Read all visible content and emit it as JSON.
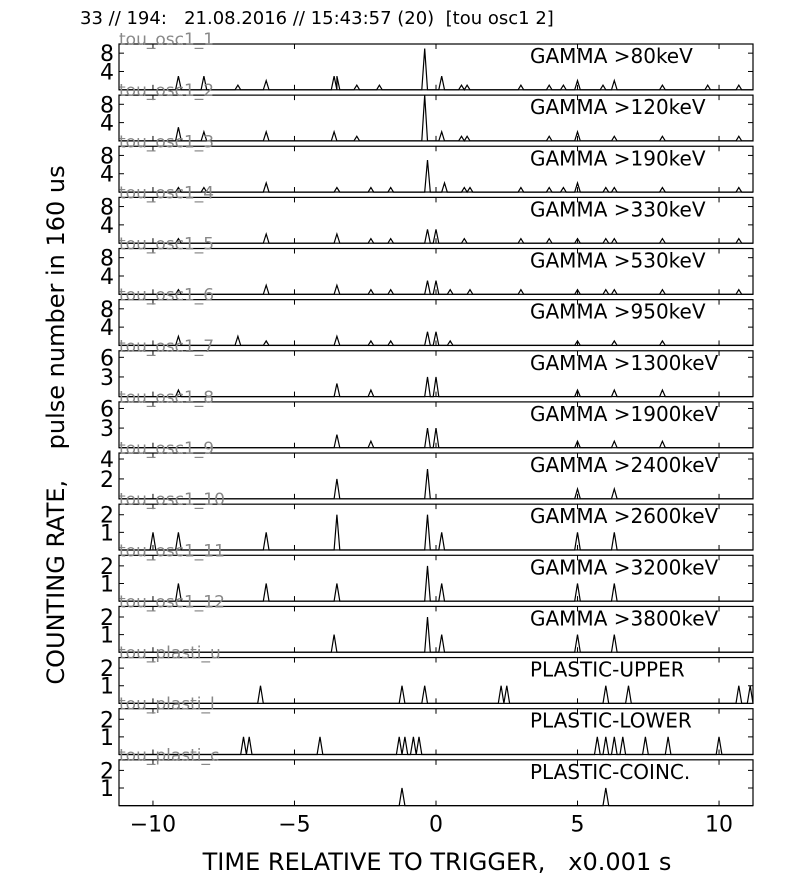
{
  "header": "33 // 194:   21.08.2016 // 15:43:57 (20)  [tou osc1 2]",
  "chart_data": {
    "type": "line",
    "xlabel": "TIME RELATIVE TO TRIGGER,   x0.001 s",
    "ylabel": "COUNTING RATE,    pulse number in 160 us",
    "xlim": [
      -11.2,
      11.2
    ],
    "x_ticks": [
      -10,
      -5,
      0,
      5,
      10
    ],
    "x_tick_labels": [
      "−10",
      "−5",
      "0",
      "5",
      "10"
    ],
    "panels": [
      {
        "channel": "tou_osc1_1",
        "label": "GAMMA >80keV",
        "ylim": [
          0,
          10
        ],
        "yticks": [
          4,
          8
        ],
        "spikes": [
          [
            -9.1,
            3
          ],
          [
            -8.2,
            3
          ],
          [
            -7,
            1
          ],
          [
            -6,
            2
          ],
          [
            -3.6,
            3
          ],
          [
            -3.5,
            3
          ],
          [
            -2.8,
            1
          ],
          [
            -2,
            1
          ],
          [
            -0.4,
            9
          ],
          [
            0.2,
            3
          ],
          [
            0.9,
            1
          ],
          [
            1.1,
            1
          ],
          [
            3,
            1
          ],
          [
            4,
            1
          ],
          [
            4.5,
            1
          ],
          [
            5,
            2
          ],
          [
            5.9,
            1
          ],
          [
            6.3,
            2
          ],
          [
            8,
            1
          ],
          [
            9.6,
            1
          ],
          [
            10.7,
            1
          ]
        ]
      },
      {
        "channel": "tou_osc1_2",
        "label": "GAMMA >120keV",
        "ylim": [
          0,
          10
        ],
        "yticks": [
          4,
          8
        ],
        "spikes": [
          [
            -9.1,
            3
          ],
          [
            -8.2,
            2
          ],
          [
            -6,
            2
          ],
          [
            -3.6,
            2
          ],
          [
            -2.8,
            1
          ],
          [
            -0.4,
            10
          ],
          [
            0.2,
            2
          ],
          [
            0.9,
            1
          ],
          [
            1.1,
            1
          ],
          [
            4,
            1
          ],
          [
            5,
            2
          ],
          [
            6.3,
            1
          ],
          [
            8,
            1
          ],
          [
            10.7,
            1
          ]
        ]
      },
      {
        "channel": "tou_osc1_3",
        "label": "GAMMA >190keV",
        "ylim": [
          0,
          10
        ],
        "yticks": [
          4,
          8
        ],
        "spikes": [
          [
            -9.1,
            1
          ],
          [
            -8.2,
            1
          ],
          [
            -6,
            2
          ],
          [
            -3.5,
            1
          ],
          [
            -2.3,
            1
          ],
          [
            -1.6,
            1
          ],
          [
            -0.3,
            7
          ],
          [
            0.3,
            2
          ],
          [
            1,
            1
          ],
          [
            1.2,
            1
          ],
          [
            3,
            1
          ],
          [
            4,
            1
          ],
          [
            4.5,
            1
          ],
          [
            5,
            2
          ],
          [
            6,
            1
          ],
          [
            6.3,
            1
          ],
          [
            8,
            1
          ],
          [
            10.7,
            1
          ]
        ]
      },
      {
        "channel": "tou_osc1_4",
        "label": "GAMMA >330keV",
        "ylim": [
          0,
          10
        ],
        "yticks": [
          4,
          8
        ],
        "spikes": [
          [
            -9.1,
            1
          ],
          [
            -6,
            2
          ],
          [
            -3.5,
            2
          ],
          [
            -2.3,
            1
          ],
          [
            -1.6,
            1
          ],
          [
            -0.3,
            3
          ],
          [
            0,
            3
          ],
          [
            1,
            1
          ],
          [
            3,
            1
          ],
          [
            4,
            1
          ],
          [
            5,
            1
          ],
          [
            6,
            1
          ],
          [
            6.3,
            1
          ],
          [
            8,
            1
          ],
          [
            10.7,
            1
          ]
        ]
      },
      {
        "channel": "tou_osc1_5",
        "label": "GAMMA >530keV",
        "ylim": [
          0,
          10
        ],
        "yticks": [
          4,
          8
        ],
        "spikes": [
          [
            -9.1,
            1
          ],
          [
            -6,
            2
          ],
          [
            -3.5,
            2
          ],
          [
            -2.3,
            1
          ],
          [
            -1.6,
            1
          ],
          [
            -0.3,
            3
          ],
          [
            0,
            3
          ],
          [
            0.5,
            1
          ],
          [
            1.2,
            1
          ],
          [
            3,
            1
          ],
          [
            5,
            1
          ],
          [
            6,
            1
          ],
          [
            6.3,
            1
          ],
          [
            8,
            1
          ],
          [
            10.7,
            1
          ]
        ]
      },
      {
        "channel": "tou_osc1_6",
        "label": "GAMMA >950keV",
        "ylim": [
          0,
          10
        ],
        "yticks": [
          4,
          8
        ],
        "spikes": [
          [
            -9.1,
            2
          ],
          [
            -7,
            2
          ],
          [
            -6,
            1
          ],
          [
            -3.5,
            2
          ],
          [
            -2.3,
            1
          ],
          [
            -1.6,
            1
          ],
          [
            -0.3,
            3
          ],
          [
            0,
            3
          ],
          [
            0.5,
            1
          ],
          [
            5,
            1
          ],
          [
            6.3,
            1
          ],
          [
            8,
            1
          ]
        ]
      },
      {
        "channel": "tou_osc1_7",
        "label": "GAMMA >1300keV",
        "ylim": [
          0,
          7
        ],
        "yticks": [
          3,
          6
        ],
        "spikes": [
          [
            -9.1,
            1
          ],
          [
            -3.5,
            2
          ],
          [
            -2.3,
            1
          ],
          [
            -0.3,
            3
          ],
          [
            0,
            3
          ],
          [
            5,
            1
          ],
          [
            6.3,
            1
          ],
          [
            8,
            1
          ]
        ]
      },
      {
        "channel": "tou_osc1_8",
        "label": "GAMMA >1900keV",
        "ylim": [
          0,
          7
        ],
        "yticks": [
          3,
          6
        ],
        "spikes": [
          [
            -3.5,
            2
          ],
          [
            -2.3,
            1
          ],
          [
            -0.3,
            3
          ],
          [
            0,
            3
          ],
          [
            5,
            1
          ],
          [
            6.3,
            1
          ],
          [
            8,
            1
          ]
        ]
      },
      {
        "channel": "tou_osc1_9",
        "label": "GAMMA >2400keV",
        "ylim": [
          0,
          4.6
        ],
        "yticks": [
          2,
          4
        ],
        "spikes": [
          [
            -3.5,
            2
          ],
          [
            -0.3,
            3
          ],
          [
            5,
            1
          ],
          [
            6.3,
            1
          ]
        ]
      },
      {
        "channel": "tou_osc1_10",
        "label": "GAMMA >2600keV",
        "ylim": [
          0,
          2.6
        ],
        "yticks": [
          1,
          2
        ],
        "spikes": [
          [
            -10,
            1
          ],
          [
            -9.1,
            1
          ],
          [
            -6,
            1
          ],
          [
            -3.5,
            2
          ],
          [
            -0.3,
            2
          ],
          [
            0.2,
            1
          ],
          [
            5,
            1
          ],
          [
            6.3,
            1
          ]
        ]
      },
      {
        "channel": "tou_osc1_11",
        "label": "GAMMA >3200keV",
        "ylim": [
          0,
          2.6
        ],
        "yticks": [
          1,
          2
        ],
        "spikes": [
          [
            -9.1,
            1
          ],
          [
            -6,
            1
          ],
          [
            -3.5,
            1
          ],
          [
            -0.3,
            2
          ],
          [
            0.2,
            1
          ],
          [
            5,
            1
          ],
          [
            6.3,
            1
          ]
        ]
      },
      {
        "channel": "tou_osc1_12",
        "label": "GAMMA >3800keV",
        "ylim": [
          0,
          2.6
        ],
        "yticks": [
          1,
          2
        ],
        "spikes": [
          [
            -3.6,
            1
          ],
          [
            -0.3,
            2
          ],
          [
            0.2,
            1
          ],
          [
            5,
            1
          ],
          [
            6.3,
            1
          ]
        ]
      },
      {
        "channel": "tou_plasti_u",
        "label": "PLASTIC-UPPER",
        "ylim": [
          0,
          2.6
        ],
        "yticks": [
          1,
          2
        ],
        "spikes": [
          [
            -6.2,
            1
          ],
          [
            -1.2,
            1
          ],
          [
            -0.4,
            1
          ],
          [
            2.3,
            1
          ],
          [
            2.5,
            1
          ],
          [
            6,
            1
          ],
          [
            6.8,
            1
          ],
          [
            10.7,
            1
          ],
          [
            11.1,
            1
          ]
        ]
      },
      {
        "channel": "tou_plasti_l",
        "label": "PLASTIC-LOWER",
        "ylim": [
          0,
          2.6
        ],
        "yticks": [
          1,
          2
        ],
        "spikes": [
          [
            -6.8,
            1
          ],
          [
            -6.6,
            1
          ],
          [
            -4.1,
            1
          ],
          [
            -1.3,
            1
          ],
          [
            -1.1,
            1
          ],
          [
            -0.8,
            1
          ],
          [
            -0.6,
            1
          ],
          [
            5.7,
            1
          ],
          [
            6,
            1
          ],
          [
            6.3,
            1
          ],
          [
            6.6,
            1
          ],
          [
            7.4,
            1
          ],
          [
            8.2,
            1
          ],
          [
            10,
            1
          ]
        ]
      },
      {
        "channel": "tou_plasti_c",
        "label": "PLASTIC-COINC.",
        "ylim": [
          0,
          2.6
        ],
        "yticks": [
          1,
          2
        ],
        "spikes": [
          [
            -1.2,
            1
          ],
          [
            6,
            1
          ]
        ]
      }
    ]
  }
}
